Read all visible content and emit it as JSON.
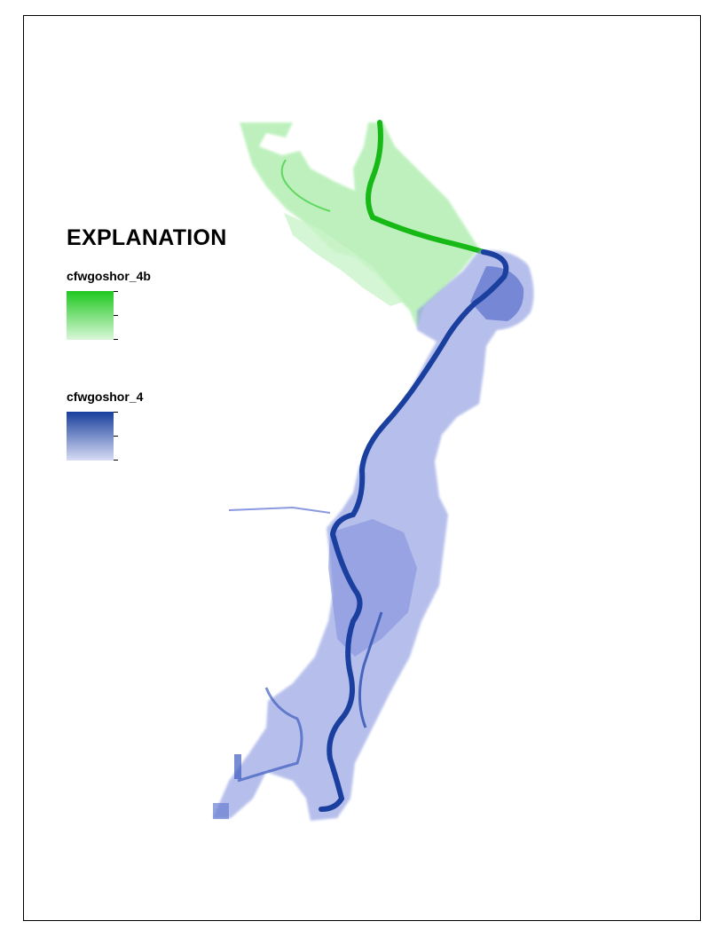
{
  "legend": {
    "title": "EXPLANATION",
    "layers": [
      {
        "name": "cfwgoshor_4b",
        "color_high": "#1fc81f",
        "color_low": "#d9f7d9"
      },
      {
        "name": "cfwgoshor_4",
        "color_high": "#183f9c",
        "color_low": "#d8dcf5"
      }
    ]
  },
  "colors": {
    "channel_blue": "#1a3f9e",
    "floodplain_blue": "#7f8fdc",
    "channel_green": "#18b818",
    "floodplain_green": "#9be89b"
  }
}
